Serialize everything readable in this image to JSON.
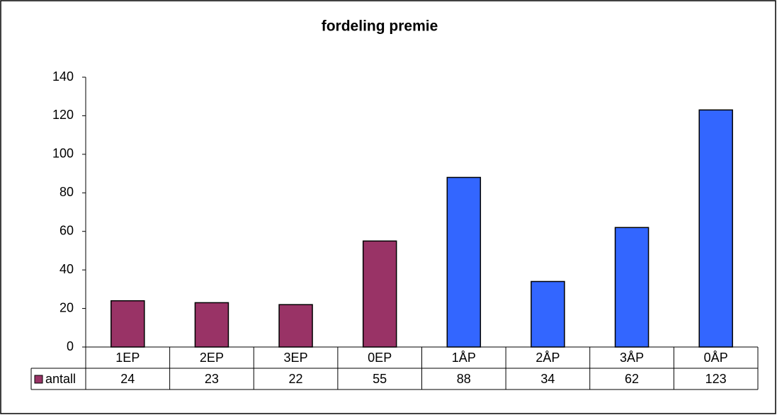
{
  "chart_data": {
    "type": "bar",
    "title": "fordeling premie",
    "categories": [
      "1EP",
      "2EP",
      "3EP",
      "0EP",
      "1ÅP",
      "2ÅP",
      "3ÅP",
      "0ÅP"
    ],
    "series": [
      {
        "name": "antall",
        "color": "#993366",
        "colors": [
          "#993366",
          "#993366",
          "#993366",
          "#993366",
          "#3366ff",
          "#3366ff",
          "#3366ff",
          "#3366ff"
        ],
        "values": [
          24,
          23,
          22,
          55,
          88,
          34,
          62,
          123
        ]
      }
    ],
    "ylim": [
      0,
      140
    ],
    "yticks": [
      0,
      20,
      40,
      60,
      80,
      100,
      120,
      140
    ],
    "grid": false
  }
}
